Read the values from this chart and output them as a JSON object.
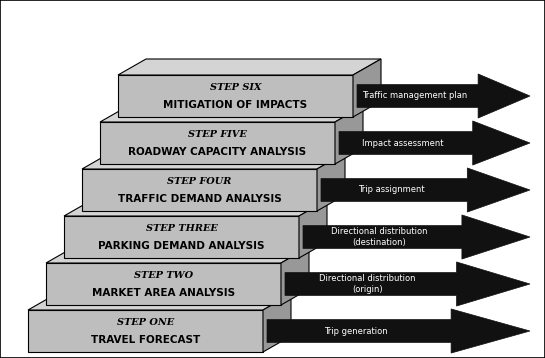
{
  "steps": [
    {
      "step_label": "STEP ONE",
      "main_label": "TRAVEL FORECAST",
      "arrow_label": "Trip generation"
    },
    {
      "step_label": "STEP TWO",
      "main_label": "MARKET AREA ANALYSIS",
      "arrow_label": "Directional distribution\n(origin)"
    },
    {
      "step_label": "STEP THREE",
      "main_label": "PARKING DEMAND ANALYSIS",
      "arrow_label": "Directional distribution\n(destination)"
    },
    {
      "step_label": "STEP FOUR",
      "main_label": "TRAFFIC DEMAND ANALYSIS",
      "arrow_label": "Trip assignment"
    },
    {
      "step_label": "STEP FIVE",
      "main_label": "ROADWAY CAPACITY ANALYSIS",
      "arrow_label": "Impact assessment"
    },
    {
      "step_label": "STEP SIX",
      "main_label": "MITIGATION OF IMPACTS",
      "arrow_label": "Traffic management plan"
    }
  ],
  "box_face_color": "#bebebe",
  "box_top_color": "#d4d4d4",
  "box_side_color": "#989898",
  "box_edge_color": "#000000",
  "arrow_color": "#111111",
  "arrow_text_color": "#ffffff",
  "bg_color": "#ffffff",
  "border_color": "#000000"
}
